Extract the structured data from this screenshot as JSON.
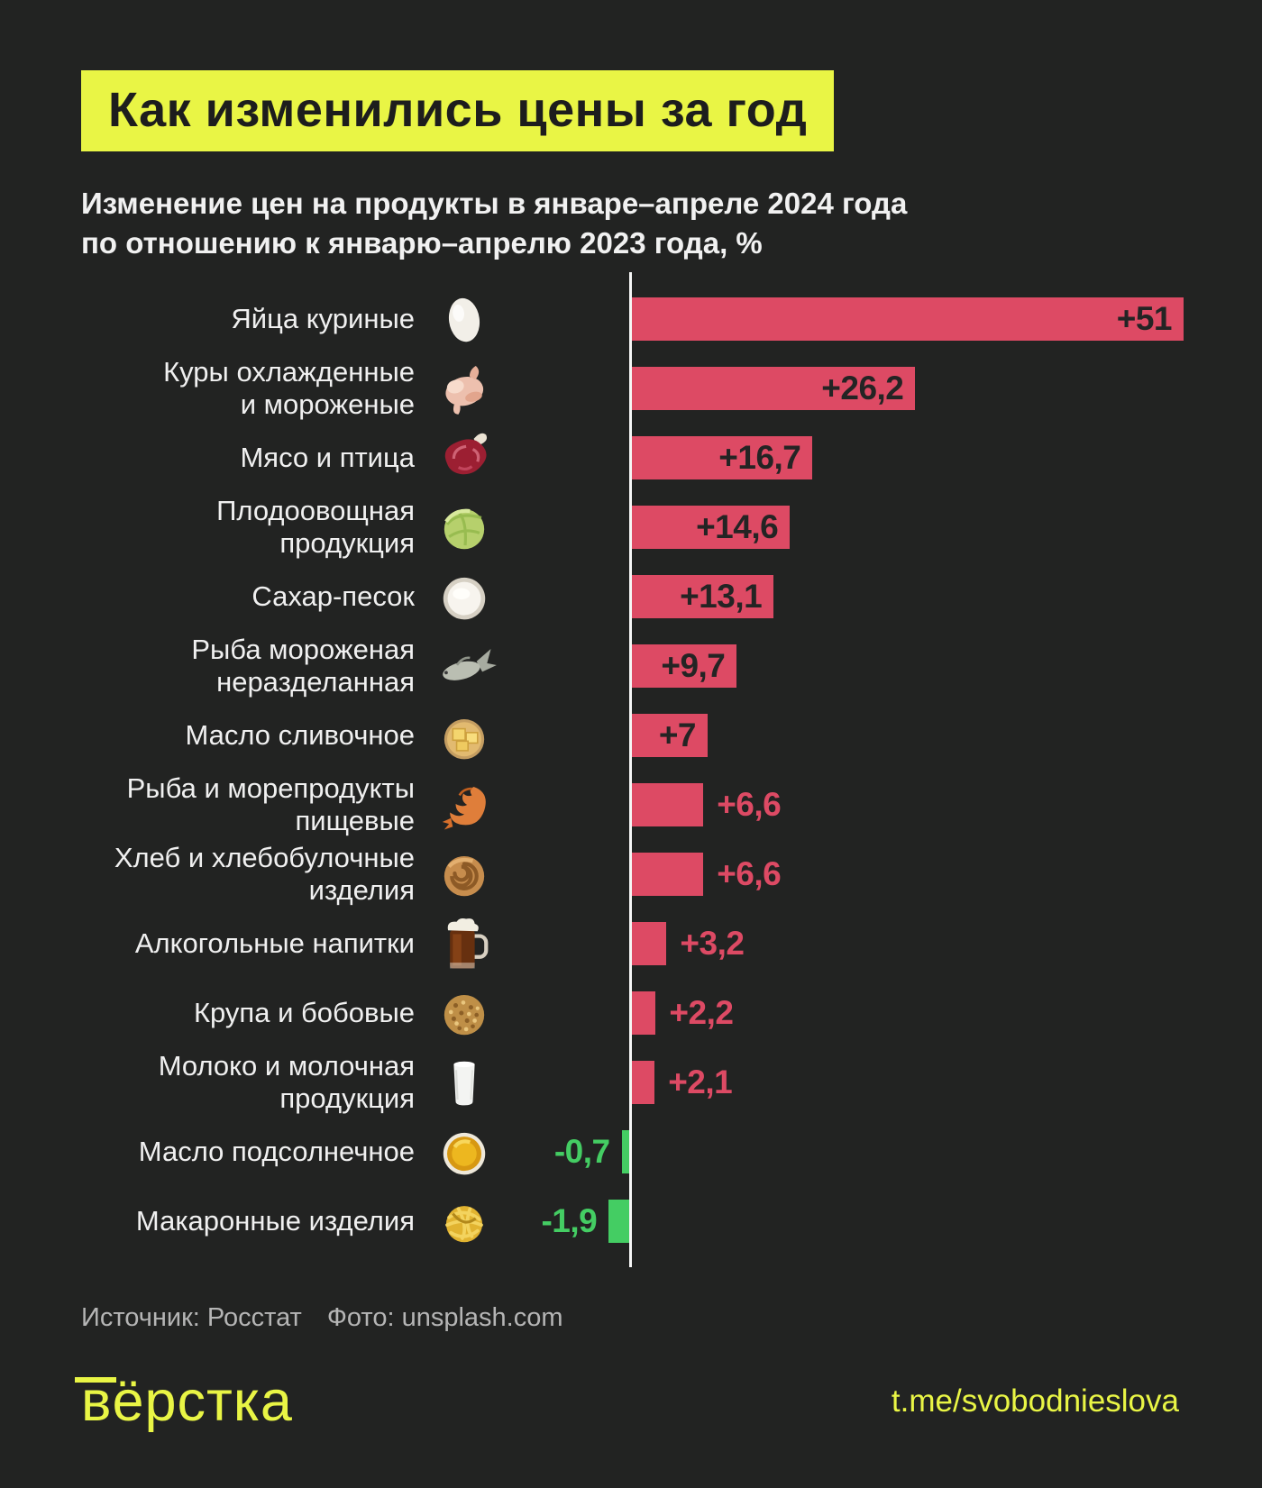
{
  "header": {
    "title": "Как изменились цены за год",
    "subtitle": "Изменение цен на продукты в январе–апреле 2024 года\nпо отношению к январю–апрелю 2023 года, %"
  },
  "chart_data": {
    "type": "bar",
    "orientation": "horizontal",
    "title": "Как изменились цены за год",
    "subtitle": "Изменение цен на продукты в январе–апреле 2024 года по отношению к январю–апрелю 2023 года, %",
    "unit": "%",
    "baseline": 0,
    "xlim": [
      -5,
      55
    ],
    "grid": false,
    "legend": false,
    "categories": [
      "Яйца куриные",
      "Куры охлажденные и мороженые",
      "Мясо и птица",
      "Плодоовощная продукция",
      "Сахар-песок",
      "Рыба мороженая неразделанная",
      "Масло сливочное",
      "Рыба и морепродукты пищевые",
      "Хлеб и хлебобулочные изделия",
      "Алкогольные напитки",
      "Крупа и бобовые",
      "Молоко и молочная продукция",
      "Масло подсолнечное",
      "Макаронные изделия"
    ],
    "values": [
      51,
      26.2,
      16.7,
      14.6,
      13.1,
      9.7,
      7,
      6.6,
      6.6,
      3.2,
      2.2,
      2.1,
      -0.7,
      -1.9
    ],
    "rows": [
      {
        "label": "Яйца куриные",
        "icon": "egg-icon",
        "value": 51,
        "value_label": "+51",
        "label_position": "inside"
      },
      {
        "label": "Куры охлажденные\nи мороженые",
        "icon": "chicken-icon",
        "value": 26.2,
        "value_label": "+26,2",
        "label_position": "inside"
      },
      {
        "label": "Мясо и птица",
        "icon": "meat-icon",
        "value": 16.7,
        "value_label": "+16,7",
        "label_position": "inside"
      },
      {
        "label": "Плодоовощная\nпродукция",
        "icon": "cabbage-icon",
        "value": 14.6,
        "value_label": "+14,6",
        "label_position": "inside"
      },
      {
        "label": "Сахар-песок",
        "icon": "sugar-icon",
        "value": 13.1,
        "value_label": "+13,1",
        "label_position": "inside"
      },
      {
        "label": "Рыба мороженая\nнеразделанная",
        "icon": "fish-icon",
        "value": 9.7,
        "value_label": "+9,7",
        "label_position": "inside"
      },
      {
        "label": "Масло сливочное",
        "icon": "butter-icon",
        "value": 7,
        "value_label": "+7",
        "label_position": "inside"
      },
      {
        "label": "Рыба и морепродукты\nпищевые",
        "icon": "shrimp-icon",
        "value": 6.6,
        "value_label": "+6,6",
        "label_position": "outside"
      },
      {
        "label": "Хлеб и хлебобулочные\nизделия",
        "icon": "bread-icon",
        "value": 6.6,
        "value_label": "+6,6",
        "label_position": "outside"
      },
      {
        "label": "Алкогольные напитки",
        "icon": "beer-icon",
        "value": 3.2,
        "value_label": "+3,2",
        "label_position": "outside"
      },
      {
        "label": "Крупа и бобовые",
        "icon": "grain-icon",
        "value": 2.2,
        "value_label": "+2,2",
        "label_position": "outside"
      },
      {
        "label": "Молоко и молочная\nпродукция",
        "icon": "milk-icon",
        "value": 2.1,
        "value_label": "+2,1",
        "label_position": "outside"
      },
      {
        "label": "Масло подсолнечное",
        "icon": "oil-icon",
        "value": -0.7,
        "value_label": "-0,7",
        "label_position": "left"
      },
      {
        "label": "Макаронные изделия",
        "icon": "pasta-icon",
        "value": -1.9,
        "value_label": "-1,9",
        "label_position": "left"
      }
    ],
    "colors": {
      "positive": "#dd4a64",
      "negative": "#44cd63",
      "axis": "#f6f6f6"
    }
  },
  "footer": {
    "source": "Источник: Росстат",
    "photo_credit": "Фото: unsplash.com",
    "logo": "вёрстка",
    "telegram": "t.me/svobodnieslova"
  },
  "colors": {
    "background": "#222322",
    "accent_yellow": "#e9f545",
    "bar_positive": "#dd4a64",
    "bar_negative": "#44cd63",
    "title_text": "#1d1d1d",
    "label_text": "#f0f0f0",
    "source_text": "#b5b5b5"
  }
}
